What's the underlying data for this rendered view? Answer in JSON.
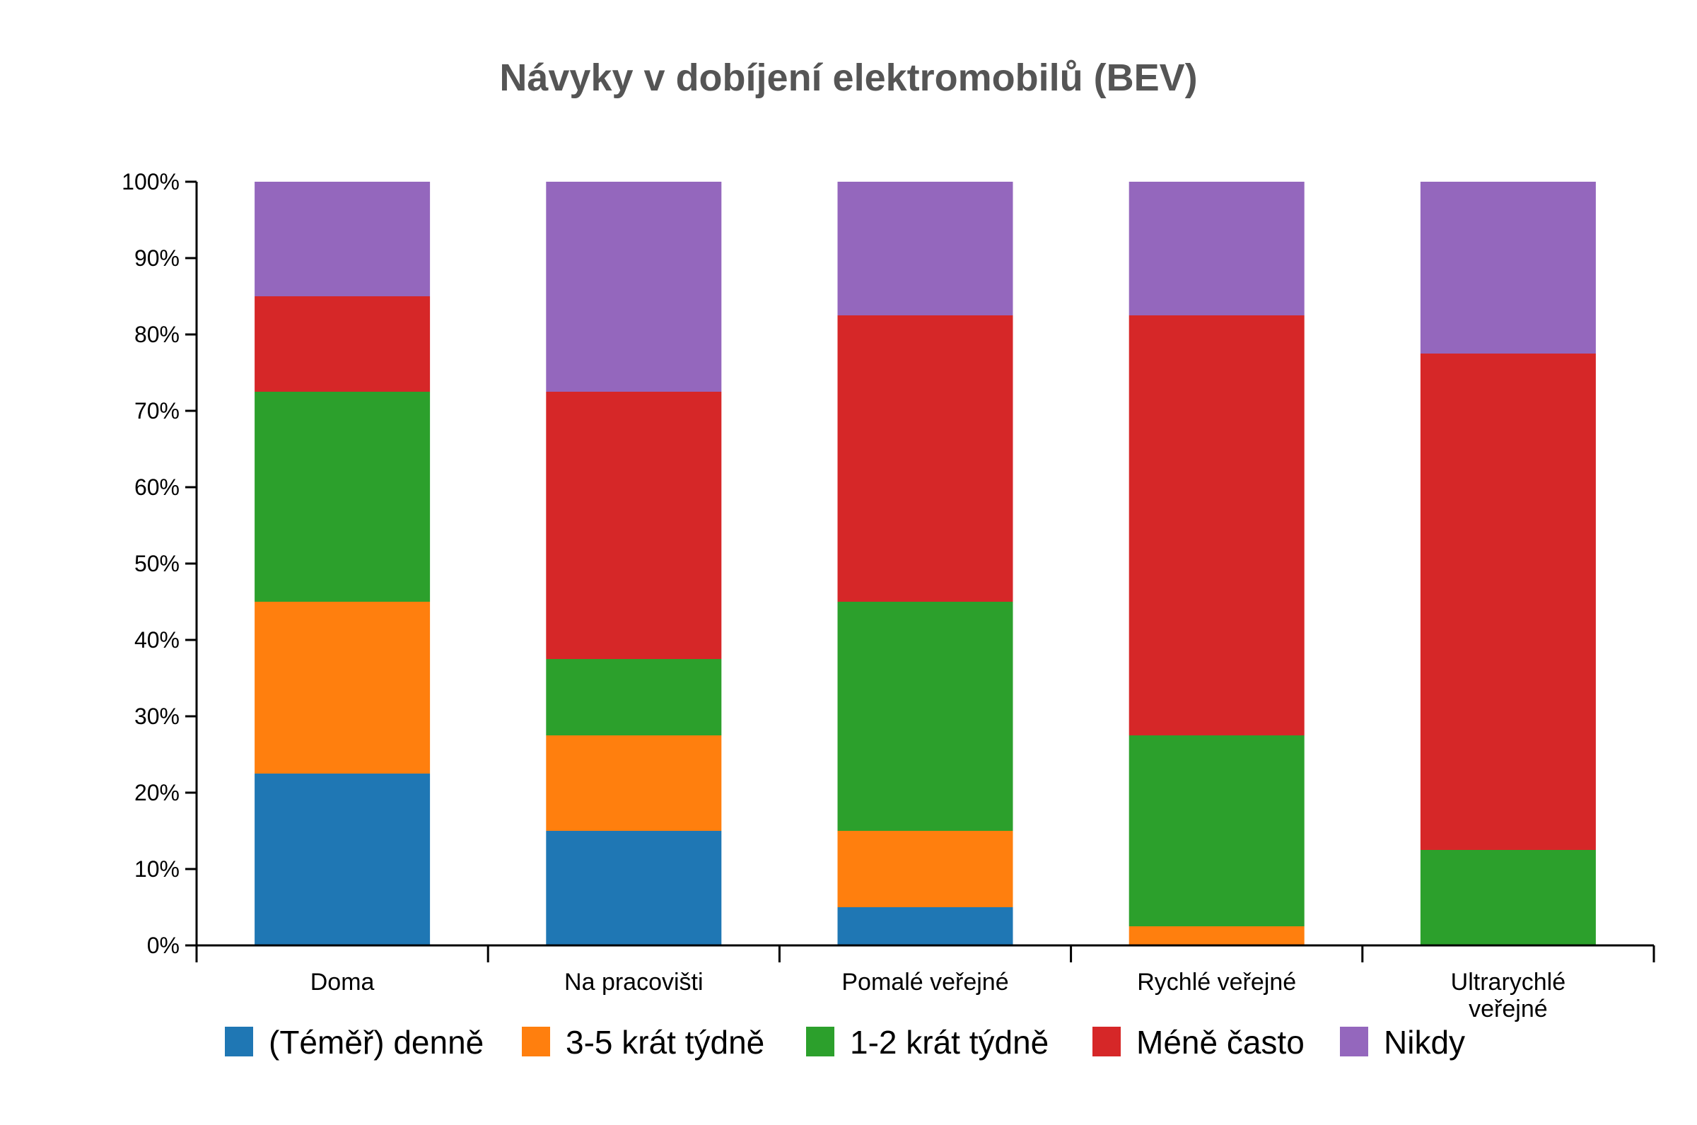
{
  "chart_data": {
    "type": "bar",
    "stacked": true,
    "title": "Návyky v dobíjení elektromobilů (BEV)",
    "xlabel": "",
    "ylabel": "",
    "ylim": [
      0,
      100
    ],
    "yticks": [
      "0%",
      "10%",
      "20%",
      "30%",
      "40%",
      "50%",
      "60%",
      "70%",
      "80%",
      "90%",
      "100%"
    ],
    "grid": false,
    "legend_position": "bottom",
    "categories": [
      "Doma",
      "Na pracovišti",
      "Pomalé veřejné",
      "Rychlé veřejné",
      "Ultrarychlé veřejné"
    ],
    "series": [
      {
        "name": "(Téměř) denně",
        "color": "#1f77b4",
        "values": [
          22.5,
          15,
          5,
          0,
          0
        ]
      },
      {
        "name": "3-5 krát týdně",
        "color": "#ff7f0e",
        "values": [
          22.5,
          12.5,
          10,
          2.5,
          0
        ]
      },
      {
        "name": "1-2 krát týdně",
        "color": "#2ca02c",
        "values": [
          27.5,
          10,
          30,
          25,
          12.5
        ]
      },
      {
        "name": "Méně často",
        "color": "#d62728",
        "values": [
          12.5,
          35,
          37.5,
          55,
          65
        ]
      },
      {
        "name": "Nikdy",
        "color": "#9467bd",
        "values": [
          15,
          27.5,
          17.5,
          17.5,
          22.5
        ]
      }
    ]
  }
}
